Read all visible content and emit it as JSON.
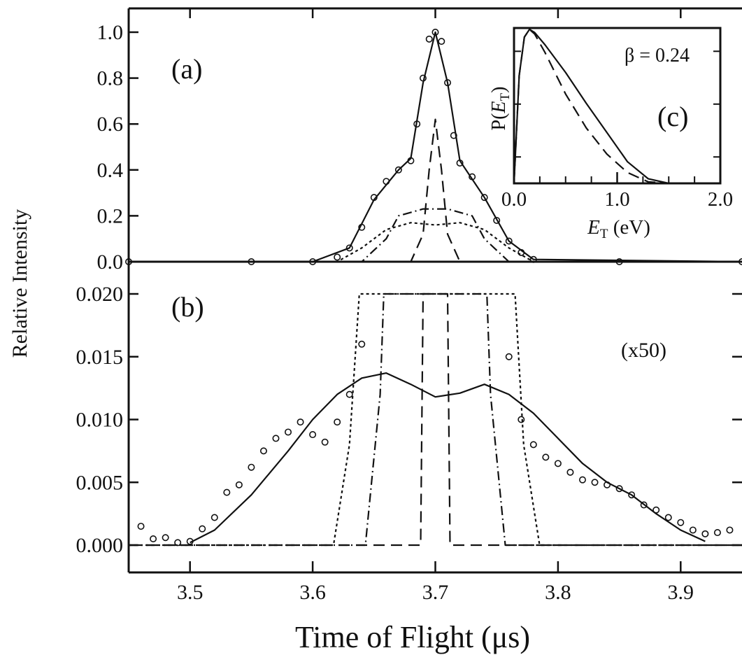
{
  "chart_data": [
    {
      "panel_label": "(a)",
      "type": "line",
      "ylim": [
        0.0,
        1.0
      ],
      "xlim": [
        3.45,
        3.95
      ],
      "y_ticks": [
        "0.0",
        "0.2",
        "0.4",
        "0.6",
        "0.8",
        "1.0"
      ],
      "series": [
        {
          "style": "circles",
          "x": [
            3.45,
            3.55,
            3.6,
            3.62,
            3.63,
            3.64,
            3.65,
            3.66,
            3.67,
            3.68,
            3.685,
            3.69,
            3.695,
            3.7,
            3.705,
            3.71,
            3.715,
            3.72,
            3.73,
            3.74,
            3.75,
            3.76,
            3.77,
            3.78,
            3.85,
            3.95
          ],
          "y": [
            0.0,
            0.0,
            0.0,
            0.02,
            0.06,
            0.15,
            0.28,
            0.35,
            0.4,
            0.44,
            0.6,
            0.8,
            0.97,
            1.0,
            0.96,
            0.78,
            0.55,
            0.43,
            0.37,
            0.28,
            0.18,
            0.09,
            0.04,
            0.01,
            0.0,
            0.0
          ]
        },
        {
          "style": "solid",
          "x": [
            3.45,
            3.6,
            3.63,
            3.65,
            3.67,
            3.68,
            3.69,
            3.7,
            3.71,
            3.72,
            3.74,
            3.76,
            3.78,
            3.95
          ],
          "y": [
            0.0,
            0.0,
            0.06,
            0.27,
            0.4,
            0.45,
            0.78,
            1.0,
            0.78,
            0.44,
            0.28,
            0.09,
            0.01,
            0.0
          ]
        },
        {
          "style": "dashed",
          "x": [
            3.45,
            3.68,
            3.69,
            3.695,
            3.7,
            3.705,
            3.71,
            3.72,
            3.95
          ],
          "y": [
            0.0,
            0.0,
            0.12,
            0.4,
            0.62,
            0.4,
            0.12,
            0.0,
            0.0
          ]
        },
        {
          "style": "dash-dot",
          "x": [
            3.45,
            3.64,
            3.66,
            3.67,
            3.69,
            3.71,
            3.73,
            3.74,
            3.76,
            3.95
          ],
          "y": [
            0.0,
            0.0,
            0.1,
            0.2,
            0.23,
            0.23,
            0.2,
            0.1,
            0.0,
            0.0
          ]
        },
        {
          "style": "dotted",
          "x": [
            3.45,
            3.62,
            3.64,
            3.66,
            3.68,
            3.7,
            3.72,
            3.74,
            3.76,
            3.78,
            3.95
          ],
          "y": [
            0.0,
            0.0,
            0.06,
            0.14,
            0.17,
            0.16,
            0.17,
            0.14,
            0.06,
            0.0,
            0.0
          ]
        }
      ]
    },
    {
      "panel_label": "(b)",
      "type": "line",
      "annotation": "(x50)",
      "ylim": [
        0.0,
        0.02
      ],
      "xlim": [
        3.45,
        3.95
      ],
      "x_ticks": [
        "3.5",
        "3.6",
        "3.7",
        "3.8",
        "3.9"
      ],
      "y_ticks": [
        "0.000",
        "0.005",
        "0.010",
        "0.015",
        "0.020"
      ],
      "series": [
        {
          "style": "circles",
          "x": [
            3.46,
            3.47,
            3.48,
            3.49,
            3.5,
            3.51,
            3.52,
            3.53,
            3.54,
            3.55,
            3.56,
            3.57,
            3.58,
            3.59,
            3.6,
            3.61,
            3.62,
            3.63,
            3.64,
            3.76,
            3.77,
            3.78,
            3.79,
            3.8,
            3.81,
            3.82,
            3.83,
            3.84,
            3.85,
            3.86,
            3.87,
            3.88,
            3.89,
            3.9,
            3.91,
            3.92,
            3.93,
            3.94
          ],
          "y": [
            0.0015,
            0.0005,
            0.0006,
            0.0002,
            0.0003,
            0.0013,
            0.0022,
            0.0042,
            0.0048,
            0.0062,
            0.0075,
            0.0085,
            0.009,
            0.0098,
            0.0088,
            0.0082,
            0.0098,
            0.012,
            0.016,
            0.015,
            0.01,
            0.008,
            0.007,
            0.0065,
            0.0058,
            0.0052,
            0.005,
            0.0048,
            0.0045,
            0.004,
            0.0032,
            0.0028,
            0.0022,
            0.0018,
            0.0012,
            0.0009,
            0.001,
            0.0012
          ]
        },
        {
          "style": "solid",
          "x": [
            3.5,
            3.52,
            3.55,
            3.58,
            3.6,
            3.62,
            3.64,
            3.66,
            3.68,
            3.7,
            3.72,
            3.74,
            3.76,
            3.78,
            3.8,
            3.82,
            3.84,
            3.86,
            3.88,
            3.9,
            3.92
          ],
          "y": [
            0.0002,
            0.0012,
            0.004,
            0.0075,
            0.01,
            0.012,
            0.0133,
            0.0137,
            0.0128,
            0.0118,
            0.0121,
            0.0128,
            0.012,
            0.0105,
            0.0085,
            0.0065,
            0.005,
            0.004,
            0.0025,
            0.0012,
            0.0003
          ]
        },
        {
          "style": "dashed",
          "x": [
            3.45,
            3.688,
            3.69,
            3.71,
            3.712,
            3.95
          ],
          "y": [
            0.0,
            0.0,
            0.02,
            0.02,
            0.0,
            0.0
          ]
        },
        {
          "style": "dash-dot",
          "x": [
            3.45,
            3.643,
            3.655,
            3.658,
            3.742,
            3.745,
            3.757,
            3.95
          ],
          "y": [
            0.0,
            0.0,
            0.012,
            0.02,
            0.02,
            0.012,
            0.0,
            0.0
          ]
        },
        {
          "style": "dotted",
          "x": [
            3.45,
            3.617,
            3.63,
            3.638,
            3.765,
            3.772,
            3.785,
            3.95
          ],
          "y": [
            0.0,
            0.0,
            0.008,
            0.02,
            0.02,
            0.008,
            0.0,
            0.0
          ]
        }
      ]
    },
    {
      "panel_label": "(c)",
      "type": "line",
      "annotation": "β = 0.24",
      "xlim": [
        0.0,
        2.0
      ],
      "x_ticks": [
        "0.0",
        "1.0",
        "2.0"
      ],
      "series": [
        {
          "style": "solid",
          "x": [
            0.0,
            0.05,
            0.1,
            0.15,
            0.2,
            0.3,
            0.5,
            0.7,
            0.9,
            1.1,
            1.3,
            1.5,
            1.8,
            2.0
          ],
          "y": [
            0.0,
            0.7,
            0.95,
            1.0,
            0.98,
            0.9,
            0.72,
            0.52,
            0.33,
            0.14,
            0.03,
            0.0,
            0.0,
            0.0
          ]
        },
        {
          "style": "dashed",
          "x": [
            0.0,
            0.05,
            0.1,
            0.15,
            0.2,
            0.3,
            0.5,
            0.7,
            0.9,
            1.1,
            1.3,
            1.5,
            1.8,
            2.0
          ],
          "y": [
            0.0,
            0.7,
            0.95,
            1.0,
            0.97,
            0.85,
            0.58,
            0.36,
            0.19,
            0.07,
            0.01,
            0.0,
            0.0,
            0.0
          ]
        }
      ]
    }
  ],
  "labels": {
    "ylabel": "Relative Intensity",
    "xlabel": "Time of Flight (μs)",
    "panel_a": "(a)",
    "panel_b": "(b)",
    "panel_c": "(c)",
    "x50": "(x50)",
    "beta": "β = 0.24",
    "inset_ylabel_prefix": "P(",
    "inset_ylabel_var": "E",
    "inset_ylabel_sub": "T",
    "inset_ylabel_suffix": ")",
    "inset_xlabel_var": "E",
    "inset_xlabel_sub": "T",
    "inset_xlabel_unit": " (eV)"
  },
  "styles": {
    "ink": "#111111"
  }
}
